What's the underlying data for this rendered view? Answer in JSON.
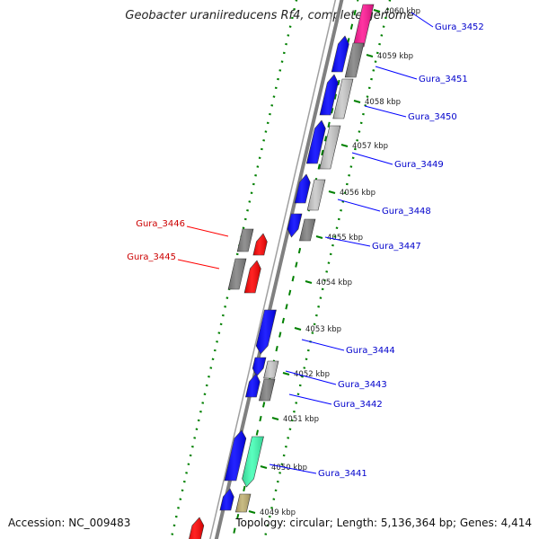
{
  "title": "Geobacter uraniireducens Rf4, complete genome",
  "footer": {
    "accession": "Accession: NC_009483",
    "topology": "Topology: circular; Length: 5,136,364 bp; Genes: 4,414"
  },
  "colors": {
    "blue": "#0000ff",
    "red": "#ff0000",
    "gray": "#808080",
    "light_gray": "#c8c8c8",
    "pink": "#ff1493",
    "aqua": "#40ffb4",
    "khaki": "#c0b070",
    "backbone": "#808080",
    "ticks": "#008000",
    "label_blue": "#0000cc",
    "label_red": "#cc0000"
  },
  "ticks": [
    {
      "label": "4060 kbp"
    },
    {
      "label": "4059 kbp"
    },
    {
      "label": "4058 kbp"
    },
    {
      "label": "4057 kbp"
    },
    {
      "label": "4056 kbp"
    },
    {
      "label": "4055 kbp"
    },
    {
      "label": "4054 kbp"
    },
    {
      "label": "4053 kbp"
    },
    {
      "label": "4052 kbp"
    },
    {
      "label": "4051 kbp"
    },
    {
      "label": "4050 kbp"
    },
    {
      "label": "4049 kbp"
    }
  ],
  "gene_labels": [
    {
      "label": "Gura_3452",
      "color": "blue"
    },
    {
      "label": "Gura_3451",
      "color": "blue"
    },
    {
      "label": "Gura_3450",
      "color": "blue"
    },
    {
      "label": "Gura_3449",
      "color": "blue"
    },
    {
      "label": "Gura_3448",
      "color": "blue"
    },
    {
      "label": "Gura_3447",
      "color": "blue"
    },
    {
      "label": "Gura_3446",
      "color": "red"
    },
    {
      "label": "Gura_3445",
      "color": "red"
    },
    {
      "label": "Gura_3444",
      "color": "blue"
    },
    {
      "label": "Gura_3443",
      "color": "blue"
    },
    {
      "label": "Gura_3442",
      "color": "blue"
    },
    {
      "label": "Gura_3441",
      "color": "blue"
    }
  ]
}
